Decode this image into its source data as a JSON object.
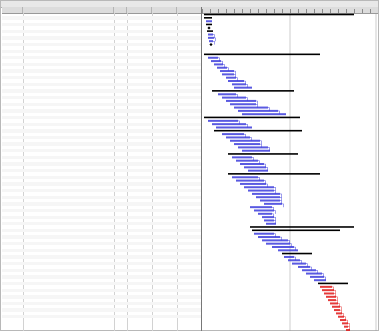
{
  "window": {
    "title": "",
    "accent_summary": "#000000",
    "accent_task": "#3c3cdc",
    "accent_critical": "#e01818",
    "accent_link": "#2b2bd8"
  },
  "table": {
    "columns": [
      {
        "key": "id",
        "label": ""
      },
      {
        "key": "name",
        "label": ""
      },
      {
        "key": "dur",
        "label": ""
      },
      {
        "key": "start",
        "label": ""
      },
      {
        "key": "finish",
        "label": ""
      },
      {
        "key": "res",
        "label": ""
      }
    ],
    "rows": [
      {
        "id": "",
        "name": "",
        "dur": "",
        "start": "",
        "finish": "",
        "res": "",
        "level": 0,
        "summary": true
      },
      {
        "id": "",
        "name": "",
        "dur": "",
        "start": "",
        "finish": "",
        "res": "",
        "level": 1,
        "summary": true
      },
      {
        "id": "",
        "name": "",
        "dur": "",
        "start": "",
        "finish": "",
        "res": "",
        "level": 2,
        "summary": false
      },
      {
        "id": "",
        "name": "",
        "dur": "",
        "start": "",
        "finish": "",
        "res": "",
        "level": 1,
        "summary": true
      },
      {
        "id": "",
        "name": "",
        "dur": "",
        "start": "",
        "finish": "",
        "res": "",
        "level": 2,
        "summary": false
      },
      {
        "id": "",
        "name": "",
        "dur": "",
        "start": "",
        "finish": "",
        "res": "",
        "level": 1,
        "summary": true
      },
      {
        "id": "",
        "name": "",
        "dur": "",
        "start": "",
        "finish": "",
        "res": "",
        "level": 2,
        "summary": false
      },
      {
        "id": "",
        "name": "",
        "dur": "",
        "start": "",
        "finish": "",
        "res": "",
        "level": 3,
        "summary": false
      },
      {
        "id": "",
        "name": "",
        "dur": "",
        "start": "",
        "finish": "",
        "res": "",
        "level": 3,
        "summary": false
      },
      {
        "id": "",
        "name": "",
        "dur": "",
        "start": "",
        "finish": "",
        "res": "",
        "level": 2,
        "summary": false
      },
      {
        "id": "",
        "name": "",
        "dur": "",
        "start": "",
        "finish": "",
        "res": "",
        "level": 1,
        "summary": true
      },
      {
        "id": "",
        "name": "",
        "dur": "",
        "start": "",
        "finish": "",
        "res": "",
        "level": 2,
        "summary": false
      },
      {
        "id": "",
        "name": "",
        "dur": "",
        "start": "",
        "finish": "",
        "res": "",
        "level": 0,
        "summary": true
      },
      {
        "id": "",
        "name": "",
        "dur": "",
        "start": "",
        "finish": "",
        "res": "",
        "level": 1,
        "summary": false
      },
      {
        "id": "",
        "name": "",
        "dur": "",
        "start": "",
        "finish": "",
        "res": "",
        "level": 1,
        "summary": false
      },
      {
        "id": "",
        "name": "",
        "dur": "",
        "start": "",
        "finish": "",
        "res": "",
        "level": 1,
        "summary": false
      },
      {
        "id": "",
        "name": "",
        "dur": "",
        "start": "",
        "finish": "",
        "res": "",
        "level": 1,
        "summary": false
      },
      {
        "id": "",
        "name": "",
        "dur": "",
        "start": "",
        "finish": "",
        "res": "",
        "level": 1,
        "summary": false
      },
      {
        "id": "",
        "name": "",
        "dur": "",
        "start": "",
        "finish": "",
        "res": "",
        "level": 1,
        "summary": false
      },
      {
        "id": "",
        "name": "",
        "dur": "",
        "start": "",
        "finish": "",
        "res": "",
        "level": 1,
        "summary": false
      },
      {
        "id": "",
        "name": "",
        "dur": "",
        "start": "",
        "finish": "",
        "res": "",
        "level": 1,
        "summary": false
      },
      {
        "id": "",
        "name": "",
        "dur": "",
        "start": "",
        "finish": "",
        "res": "",
        "level": 1,
        "summary": false
      },
      {
        "id": "",
        "name": "",
        "dur": "",
        "start": "",
        "finish": "",
        "res": "",
        "level": 1,
        "summary": false
      },
      {
        "id": "",
        "name": "",
        "dur": "",
        "start": "",
        "finish": "",
        "res": "",
        "level": 0,
        "summary": true
      },
      {
        "id": "",
        "name": "",
        "dur": "",
        "start": "",
        "finish": "",
        "res": "",
        "level": 1,
        "summary": false
      },
      {
        "id": "",
        "name": "",
        "dur": "",
        "start": "",
        "finish": "",
        "res": "",
        "level": 2,
        "summary": false
      },
      {
        "id": "",
        "name": "",
        "dur": "",
        "start": "",
        "finish": "",
        "res": "",
        "level": 2,
        "summary": false
      },
      {
        "id": "",
        "name": "",
        "dur": "",
        "start": "",
        "finish": "",
        "res": "",
        "level": 2,
        "summary": false
      },
      {
        "id": "",
        "name": "",
        "dur": "",
        "start": "",
        "finish": "",
        "res": "",
        "level": 2,
        "summary": false
      },
      {
        "id": "",
        "name": "",
        "dur": "",
        "start": "",
        "finish": "",
        "res": "",
        "level": 2,
        "summary": false
      },
      {
        "id": "",
        "name": "",
        "dur": "",
        "start": "",
        "finish": "",
        "res": "",
        "level": 2,
        "summary": false
      },
      {
        "id": "",
        "name": "",
        "dur": "",
        "start": "",
        "finish": "",
        "res": "",
        "level": 1,
        "summary": true
      },
      {
        "id": "",
        "name": "",
        "dur": "",
        "start": "",
        "finish": "",
        "res": "",
        "level": 2,
        "summary": false
      },
      {
        "id": "",
        "name": "",
        "dur": "",
        "start": "",
        "finish": "",
        "res": "",
        "level": 2,
        "summary": false
      },
      {
        "id": "",
        "name": "",
        "dur": "",
        "start": "",
        "finish": "",
        "res": "",
        "level": 2,
        "summary": false
      },
      {
        "id": "",
        "name": "",
        "dur": "",
        "start": "",
        "finish": "",
        "res": "",
        "level": 1,
        "summary": true
      },
      {
        "id": "",
        "name": "",
        "dur": "",
        "start": "",
        "finish": "",
        "res": "",
        "level": 2,
        "summary": false
      },
      {
        "id": "",
        "name": "",
        "dur": "",
        "start": "",
        "finish": "",
        "res": "",
        "level": 2,
        "summary": false
      },
      {
        "id": "",
        "name": "",
        "dur": "",
        "start": "",
        "finish": "",
        "res": "",
        "level": 2,
        "summary": false
      },
      {
        "id": "",
        "name": "",
        "dur": "",
        "start": "",
        "finish": "",
        "res": "",
        "level": 2,
        "summary": false
      },
      {
        "id": "",
        "name": "",
        "dur": "",
        "start": "",
        "finish": "",
        "res": "",
        "level": 2,
        "summary": false
      },
      {
        "id": "",
        "name": "",
        "dur": "",
        "start": "",
        "finish": "",
        "res": "",
        "level": 2,
        "summary": false
      },
      {
        "id": "",
        "name": "",
        "dur": "",
        "start": "",
        "finish": "",
        "res": "",
        "level": 1,
        "summary": true
      },
      {
        "id": "",
        "name": "",
        "dur": "",
        "start": "",
        "finish": "",
        "res": "",
        "level": 2,
        "summary": false
      },
      {
        "id": "",
        "name": "",
        "dur": "",
        "start": "",
        "finish": "",
        "res": "",
        "level": 2,
        "summary": false
      },
      {
        "id": "",
        "name": "",
        "dur": "",
        "start": "",
        "finish": "",
        "res": "",
        "level": 2,
        "summary": false
      },
      {
        "id": "",
        "name": "",
        "dur": "",
        "start": "",
        "finish": "",
        "res": "",
        "level": 2,
        "summary": false
      },
      {
        "id": "",
        "name": "",
        "dur": "",
        "start": "",
        "finish": "",
        "res": "",
        "level": 2,
        "summary": false
      },
      {
        "id": "",
        "name": "",
        "dur": "",
        "start": "",
        "finish": "",
        "res": "",
        "level": 1,
        "summary": true
      },
      {
        "id": "",
        "name": "",
        "dur": "",
        "start": "",
        "finish": "",
        "res": "",
        "level": 2,
        "summary": false
      },
      {
        "id": "",
        "name": "",
        "dur": "",
        "start": "",
        "finish": "",
        "res": "",
        "level": 2,
        "summary": false
      },
      {
        "id": "",
        "name": "",
        "dur": "",
        "start": "",
        "finish": "",
        "res": "",
        "level": 2,
        "summary": false
      },
      {
        "id": "",
        "name": "",
        "dur": "",
        "start": "",
        "finish": "",
        "res": "",
        "level": 2,
        "summary": false
      },
      {
        "id": "",
        "name": "",
        "dur": "",
        "start": "",
        "finish": "",
        "res": "",
        "level": 2,
        "summary": false
      },
      {
        "id": "",
        "name": "",
        "dur": "",
        "start": "",
        "finish": "",
        "res": "",
        "level": 2,
        "summary": false
      },
      {
        "id": "",
        "name": "",
        "dur": "",
        "start": "",
        "finish": "",
        "res": "",
        "level": 2,
        "summary": false
      },
      {
        "id": "",
        "name": "",
        "dur": "",
        "start": "",
        "finish": "",
        "res": "",
        "level": 2,
        "summary": false
      },
      {
        "id": "",
        "name": "",
        "dur": "",
        "start": "",
        "finish": "",
        "res": "",
        "level": 2,
        "summary": false
      },
      {
        "id": "",
        "name": "",
        "dur": "",
        "start": "",
        "finish": "",
        "res": "",
        "level": 2,
        "summary": false
      },
      {
        "id": "",
        "name": "",
        "dur": "",
        "start": "",
        "finish": "",
        "res": "",
        "level": 2,
        "summary": false
      },
      {
        "id": "",
        "name": "",
        "dur": "",
        "start": "",
        "finish": "",
        "res": "",
        "level": 2,
        "summary": false
      },
      {
        "id": "",
        "name": "",
        "dur": "",
        "start": "",
        "finish": "",
        "res": "",
        "level": 2,
        "summary": false
      },
      {
        "id": "",
        "name": "",
        "dur": "",
        "start": "",
        "finish": "",
        "res": "",
        "level": 2,
        "summary": false
      },
      {
        "id": "",
        "name": "",
        "dur": "",
        "start": "",
        "finish": "",
        "res": "",
        "level": 2,
        "summary": false
      },
      {
        "id": "",
        "name": "",
        "dur": "",
        "start": "",
        "finish": "",
        "res": "",
        "level": 0,
        "summary": true
      },
      {
        "id": "",
        "name": "",
        "dur": "",
        "start": "",
        "finish": "",
        "res": "",
        "level": 1,
        "summary": true
      },
      {
        "id": "",
        "name": "",
        "dur": "",
        "start": "",
        "finish": "",
        "res": "",
        "level": 2,
        "summary": false
      },
      {
        "id": "",
        "name": "",
        "dur": "",
        "start": "",
        "finish": "",
        "res": "",
        "level": 2,
        "summary": false
      },
      {
        "id": "",
        "name": "",
        "dur": "",
        "start": "",
        "finish": "",
        "res": "",
        "level": 2,
        "summary": false
      },
      {
        "id": "",
        "name": "",
        "dur": "",
        "start": "",
        "finish": "",
        "res": "",
        "level": 2,
        "summary": false
      },
      {
        "id": "",
        "name": "",
        "dur": "",
        "start": "",
        "finish": "",
        "res": "",
        "level": 2,
        "summary": false
      },
      {
        "id": "",
        "name": "",
        "dur": "",
        "start": "",
        "finish": "",
        "res": "",
        "level": 2,
        "summary": false
      },
      {
        "id": "",
        "name": "",
        "dur": "",
        "start": "",
        "finish": "",
        "res": "",
        "level": 1,
        "summary": true
      },
      {
        "id": "",
        "name": "",
        "dur": "",
        "start": "",
        "finish": "",
        "res": "",
        "level": 2,
        "summary": false
      },
      {
        "id": "",
        "name": "",
        "dur": "",
        "start": "",
        "finish": "",
        "res": "",
        "level": 2,
        "summary": false
      },
      {
        "id": "",
        "name": "",
        "dur": "",
        "start": "",
        "finish": "",
        "res": "",
        "level": 2,
        "summary": false
      },
      {
        "id": "",
        "name": "",
        "dur": "",
        "start": "",
        "finish": "",
        "res": "",
        "level": 2,
        "summary": false
      },
      {
        "id": "",
        "name": "",
        "dur": "",
        "start": "",
        "finish": "",
        "res": "",
        "level": 2,
        "summary": false
      },
      {
        "id": "",
        "name": "",
        "dur": "",
        "start": "",
        "finish": "",
        "res": "",
        "level": 2,
        "summary": false
      },
      {
        "id": "",
        "name": "",
        "dur": "",
        "start": "",
        "finish": "",
        "res": "",
        "level": 2,
        "summary": false
      },
      {
        "id": "",
        "name": "",
        "dur": "",
        "start": "",
        "finish": "",
        "res": "",
        "level": 2,
        "summary": false
      },
      {
        "id": "",
        "name": "",
        "dur": "",
        "start": "",
        "finish": "",
        "res": "",
        "level": 2,
        "summary": false
      },
      {
        "id": "",
        "name": "",
        "dur": "",
        "start": "",
        "finish": "",
        "res": "",
        "level": 2,
        "summary": false
      },
      {
        "id": "",
        "name": "",
        "dur": "",
        "start": "",
        "finish": "",
        "res": "",
        "level": 2,
        "summary": false
      },
      {
        "id": "",
        "name": "",
        "dur": "",
        "start": "",
        "finish": "",
        "res": "",
        "level": 2,
        "summary": false
      },
      {
        "id": "",
        "name": "",
        "dur": "",
        "start": "",
        "finish": "",
        "res": "",
        "level": 2,
        "summary": false
      },
      {
        "id": "",
        "name": "",
        "dur": "",
        "start": "",
        "finish": "",
        "res": "",
        "level": 2,
        "summary": false
      },
      {
        "id": "",
        "name": "",
        "dur": "",
        "start": "",
        "finish": "",
        "res": "",
        "level": 2,
        "summary": false
      },
      {
        "id": "",
        "name": "",
        "dur": "",
        "start": "",
        "finish": "",
        "res": "",
        "level": 2,
        "summary": false
      },
      {
        "id": "",
        "name": "",
        "dur": "",
        "start": "",
        "finish": "",
        "res": "",
        "level": 2,
        "summary": false
      },
      {
        "id": "",
        "name": "",
        "dur": "",
        "start": "",
        "finish": "",
        "res": "",
        "level": 2,
        "summary": false
      },
      {
        "id": "",
        "name": "",
        "dur": "",
        "start": "",
        "finish": "",
        "res": "",
        "level": 2,
        "summary": false
      },
      {
        "id": "",
        "name": "",
        "dur": "",
        "start": "",
        "finish": "",
        "res": "",
        "level": 2,
        "summary": false
      }
    ]
  }
}
